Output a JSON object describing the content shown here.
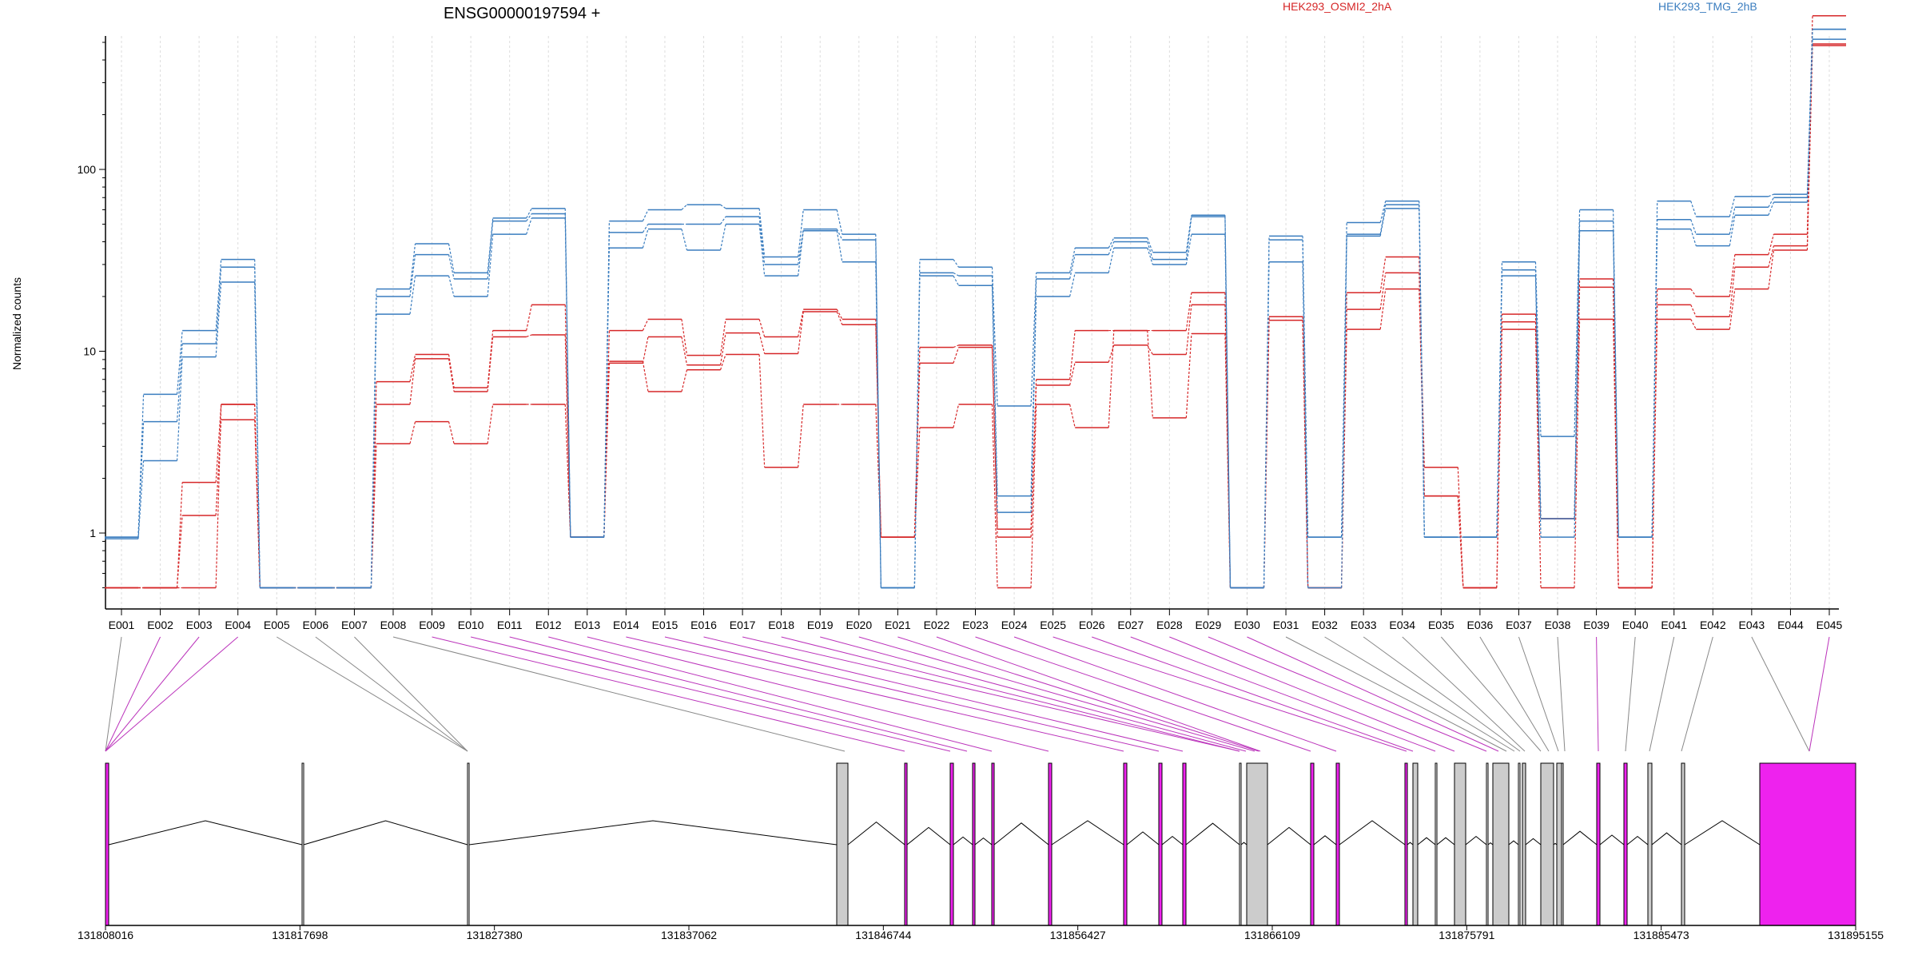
{
  "title": "ENSG00000197594 +",
  "colors": {
    "condA": "#d62728",
    "condB": "#3a7dbf",
    "exonHighlight": "#ee22ee",
    "exonGray": "#cccccc"
  },
  "legend": [
    {
      "name": "HEK293_OSMI2_2hA",
      "color": "#d62728"
    },
    {
      "name": "HEK293_TMG_2hB",
      "color": "#3a7dbf"
    }
  ],
  "chart_data": {
    "type": "line",
    "scale": "log",
    "ylabel": "Normalized counts",
    "yticks": [
      "1",
      "10",
      "100"
    ],
    "categories": [
      "E001",
      "E002",
      "E003",
      "E004",
      "E005",
      "E006",
      "E007",
      "E008",
      "E009",
      "E010",
      "E011",
      "E012",
      "E013",
      "E014",
      "E015",
      "E016",
      "E017",
      "E018",
      "E019",
      "E020",
      "E021",
      "E022",
      "E023",
      "E024",
      "E025",
      "E026",
      "E027",
      "E028",
      "E029",
      "E030",
      "E031",
      "E032",
      "E033",
      "E034",
      "E035",
      "E036",
      "E037",
      "E038",
      "E039",
      "E040",
      "E041",
      "E042",
      "E043",
      "E044",
      "E045"
    ],
    "series": [
      {
        "name": "HEK293_OSMI2_2hA",
        "color": "red",
        "values": [
          0.5,
          0.5,
          1.9,
          5.1,
          0.5,
          0.5,
          0.5,
          6.8,
          9.6,
          6.3,
          13,
          18,
          0.95,
          13,
          15,
          9.5,
          15,
          12,
          17,
          15,
          0.95,
          10.5,
          10.8,
          1.05,
          7,
          13,
          13,
          13,
          21,
          0.5,
          15.5,
          0.5,
          21,
          33,
          2.3,
          0.5,
          16,
          1.2,
          25,
          0.5,
          22,
          20,
          34,
          44,
          700
        ]
      },
      {
        "name": "HEK293_OSMI2_2hA",
        "color": "red",
        "values": [
          0.5,
          0.5,
          1.25,
          4.2,
          0.5,
          0.5,
          0.5,
          5.1,
          9.1,
          6.0,
          12,
          12.3,
          0.95,
          8.6,
          12,
          8.4,
          12.6,
          9.7,
          16.5,
          14,
          0.95,
          8.6,
          10.5,
          0.95,
          6.5,
          8.7,
          10.8,
          9.6,
          18,
          0.5,
          14.8,
          0.5,
          17,
          27,
          1.6,
          0.5,
          14.5,
          1.2,
          22.5,
          0.5,
          18,
          15.5,
          29,
          38,
          490
        ]
      },
      {
        "name": "HEK293_OSMI2_2hA",
        "color": "red",
        "values": [
          0.5,
          0.5,
          0.5,
          5.1,
          0.5,
          0.5,
          0.5,
          3.1,
          4.1,
          3.1,
          5.1,
          5.1,
          0.95,
          8.8,
          6.0,
          7.9,
          9.6,
          2.3,
          5.1,
          5.1,
          0.95,
          3.8,
          5.1,
          0.5,
          5.1,
          3.8,
          13,
          4.3,
          12.5,
          0.5,
          15.5,
          0.5,
          13.2,
          22,
          1.6,
          0.5,
          13.2,
          0.5,
          15,
          0.5,
          15,
          13.2,
          22,
          36,
          480
        ]
      },
      {
        "name": "HEK293_TMG_2hB",
        "color": "blue",
        "values": [
          0.95,
          5.8,
          13,
          32,
          0.5,
          0.5,
          0.5,
          22,
          39,
          27,
          54,
          61,
          0.95,
          52,
          60,
          64,
          61,
          33,
          60,
          44,
          0.5,
          32,
          29,
          5.0,
          27,
          37,
          42,
          35,
          56,
          0.5,
          43,
          0.95,
          51,
          67,
          0.95,
          0.95,
          31,
          3.4,
          60,
          0.95,
          67,
          55,
          71,
          73,
          590
        ]
      },
      {
        "name": "HEK293_TMG_2hB",
        "color": "blue",
        "values": [
          0.95,
          4.1,
          11,
          29,
          0.5,
          0.5,
          0.5,
          20,
          34,
          25,
          52,
          57,
          0.95,
          45,
          50,
          50,
          55,
          30,
          47,
          41,
          0.5,
          27,
          26,
          1.6,
          25,
          34,
          40,
          32,
          55,
          0.5,
          41,
          0.95,
          44,
          64,
          0.95,
          0.95,
          28,
          1.2,
          52,
          0.95,
          53,
          44,
          62,
          70,
          520
        ]
      },
      {
        "name": "HEK293_TMG_2hB",
        "color": "blue",
        "values": [
          0.93,
          2.5,
          9.3,
          24,
          0.5,
          0.5,
          0.5,
          16,
          26,
          20,
          44,
          54,
          0.95,
          37,
          47,
          36,
          50,
          26,
          46,
          31,
          0.5,
          26,
          23,
          1.3,
          20,
          27,
          37,
          30,
          44,
          0.5,
          31,
          0.5,
          43,
          61,
          0.95,
          0.95,
          26,
          0.95,
          46,
          0.95,
          47,
          38,
          56,
          66,
          590
        ]
      }
    ]
  },
  "coordinate_ticks": [
    "131808016",
    "131817698",
    "131827380",
    "131837062",
    "131846744",
    "131856427",
    "131866109",
    "131875791",
    "131885473",
    "131895155"
  ]
}
